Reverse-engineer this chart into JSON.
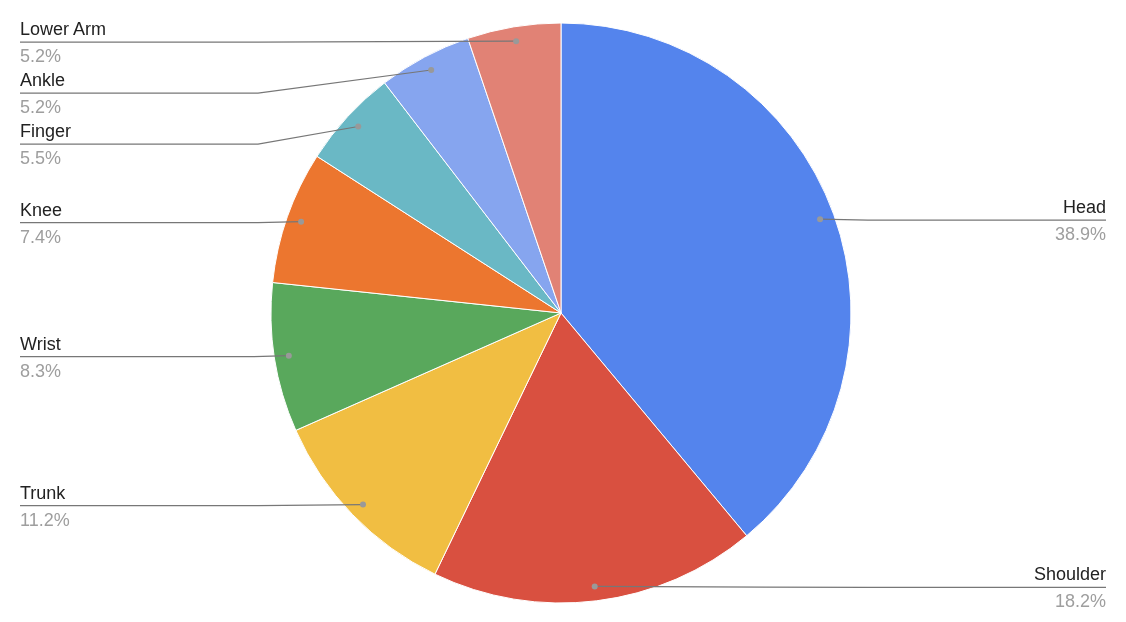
{
  "chart_data": {
    "type": "pie",
    "categories": [
      "Head",
      "Shoulder",
      "Trunk",
      "Wrist",
      "Knee",
      "Finger",
      "Ankle",
      "Lower Arm"
    ],
    "values": [
      38.9,
      18.2,
      11.2,
      8.3,
      7.4,
      5.5,
      5.2,
      5.2
    ],
    "value_labels": [
      "38.9%",
      "18.2%",
      "11.2%",
      "8.3%",
      "7.4%",
      "5.5%",
      "5.2%",
      "5.2%"
    ],
    "colors": [
      "#5484ed",
      "#d95040",
      "#f1be42",
      "#59a85c",
      "#ec762f",
      "#6ab8c5",
      "#86a5ef",
      "#e18275"
    ],
    "legend": false
  }
}
